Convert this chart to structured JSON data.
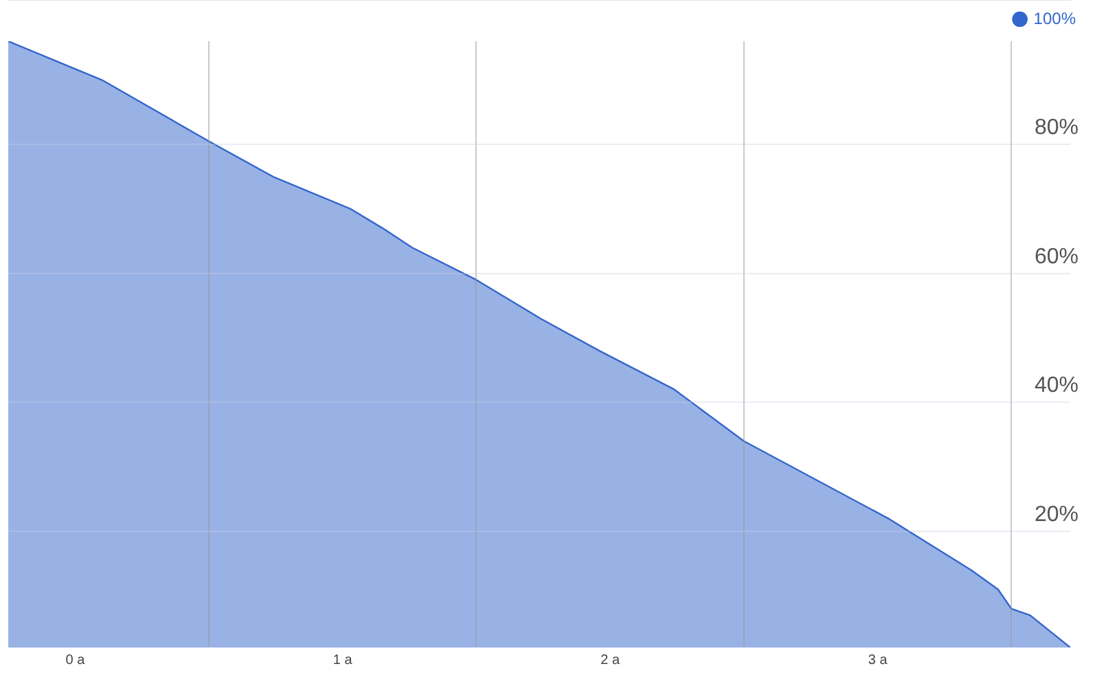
{
  "chart_data": {
    "type": "area",
    "legend": "top right",
    "grid": true,
    "x": [
      -0.25,
      0.1,
      0.5,
      0.74,
      1.03,
      1.15,
      1.26,
      1.5,
      1.74,
      1.96,
      2.24,
      2.5,
      3.04,
      3.35,
      3.45,
      3.5,
      3.57,
      3.63,
      3.72
    ],
    "series": [
      {
        "name": "100%",
        "color": "#3366cc",
        "values": [
          96,
          90,
          80.5,
          75,
          70,
          67,
          64,
          59,
          53,
          48,
          42,
          34,
          22,
          14,
          11,
          8,
          7,
          5,
          2
        ]
      }
    ],
    "xlim": [
      -0.25,
      3.72
    ],
    "xticks": [
      {
        "value": 0,
        "label": "0 a"
      },
      {
        "value": 0.5,
        "label": null
      },
      {
        "value": 1,
        "label": "1 a"
      },
      {
        "value": 1.5,
        "label": null
      },
      {
        "value": 2,
        "label": "2 a"
      },
      {
        "value": 2.5,
        "label": null
      },
      {
        "value": 3,
        "label": "3 a"
      },
      {
        "value": 3.5,
        "label": null
      }
    ],
    "ylim": [
      2,
      96
    ],
    "yticks": [
      {
        "value": 20,
        "label": "20%"
      },
      {
        "value": 40,
        "label": "40%"
      },
      {
        "value": 60,
        "label": "60%"
      },
      {
        "value": 80,
        "label": "80%"
      }
    ]
  }
}
